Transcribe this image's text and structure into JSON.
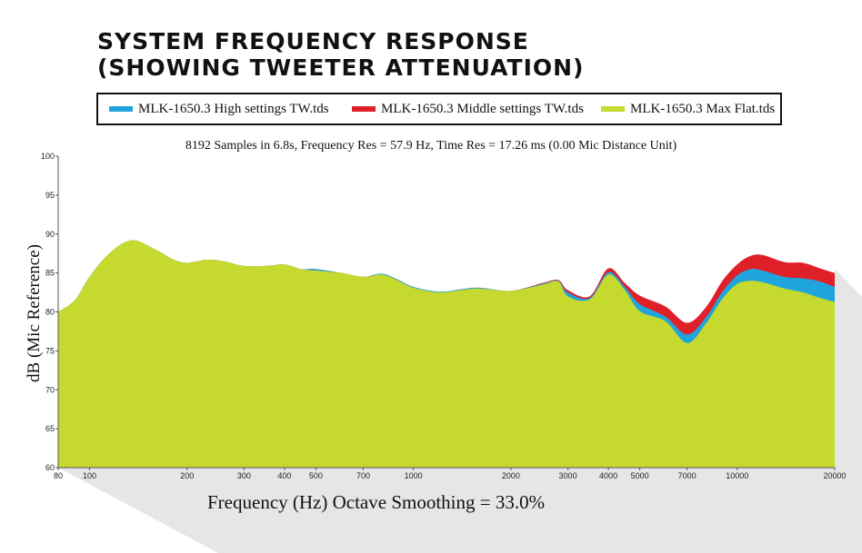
{
  "title_lines": [
    "SYSTEM FREQUENCY RESPONSE",
    "(SHOWING TWEETER ATTENUATION)"
  ],
  "subtitle": "8192 Samples in 6.8s, Frequency Res = 57.9 Hz, Time Res = 17.26 ms (0.00 Mic Distance Unit)",
  "colors": {
    "high": "#1fa4dc",
    "middle": "#e02029",
    "maxflat": "#c6d92e",
    "shadow": "#e2e2e2"
  },
  "chart_data": {
    "type": "area",
    "title": "SYSTEM FREQUENCY RESPONSE (SHOWING TWEETER ATTENUATION)",
    "xlabel": "Frequency (Hz) Octave Smoothing = 33.0%",
    "ylabel": "dB (Mic Reference)",
    "xscale": "log",
    "xlim": [
      80,
      20000
    ],
    "ylim": [
      60,
      100
    ],
    "grid": false,
    "legend": "top",
    "x_ticks": [
      80,
      100,
      200,
      300,
      400,
      500,
      700,
      1000,
      2000,
      3000,
      4000,
      5000,
      7000,
      10000,
      20000
    ],
    "y_ticks": [
      60,
      65,
      70,
      75,
      80,
      85,
      90,
      95,
      100
    ],
    "x": [
      80,
      90,
      100,
      115,
      135,
      160,
      180,
      200,
      230,
      260,
      300,
      350,
      400,
      450,
      500,
      600,
      700,
      800,
      900,
      1000,
      1200,
      1400,
      1600,
      2000,
      2500,
      2800,
      3000,
      3500,
      4000,
      4500,
      5000,
      6000,
      7000,
      8000,
      9000,
      10000,
      11000,
      12000,
      14000,
      16000,
      18000,
      20000
    ],
    "series": [
      {
        "name": "MLK-1650.3 Middle settings TW.tds",
        "color": "#e02029",
        "values": [
          80.0,
          81.5,
          84.5,
          87.5,
          89.2,
          88.0,
          86.8,
          86.3,
          86.7,
          86.5,
          85.9,
          85.9,
          86.1,
          85.5,
          85.5,
          85.0,
          84.5,
          84.9,
          84.1,
          83.2,
          82.5,
          82.9,
          83.1,
          82.7,
          83.7,
          84.1,
          82.8,
          82.0,
          85.6,
          83.7,
          82.1,
          80.7,
          78.6,
          80.6,
          84.0,
          86.1,
          87.2,
          87.3,
          86.4,
          86.3,
          85.6,
          85.0
        ]
      },
      {
        "name": "MLK-1650.3 High settings TW.tds",
        "color": "#1fa4dc",
        "values": [
          80.0,
          81.5,
          84.5,
          87.5,
          89.2,
          88.0,
          86.8,
          86.3,
          86.7,
          86.5,
          85.9,
          85.9,
          86.1,
          85.5,
          85.5,
          85.0,
          84.5,
          84.9,
          84.1,
          83.2,
          82.6,
          82.9,
          83.1,
          82.7,
          83.6,
          84.0,
          82.5,
          81.8,
          85.1,
          83.2,
          81.0,
          79.4,
          77.1,
          79.3,
          82.6,
          84.7,
          85.5,
          85.3,
          84.5,
          84.3,
          83.9,
          83.2
        ]
      },
      {
        "name": "MLK-1650.3 Max Flat.tds",
        "color": "#c6d92e",
        "values": [
          80.0,
          81.5,
          84.5,
          87.5,
          89.2,
          88.0,
          86.8,
          86.3,
          86.7,
          86.5,
          85.9,
          85.9,
          86.1,
          85.5,
          85.3,
          85.0,
          84.5,
          84.8,
          84.0,
          83.1,
          82.5,
          82.8,
          83.0,
          82.7,
          83.5,
          83.9,
          82.0,
          81.6,
          84.8,
          82.8,
          80.1,
          78.8,
          76.0,
          78.5,
          81.7,
          83.6,
          84.0,
          83.8,
          83.0,
          82.5,
          81.8,
          81.3
        ]
      }
    ]
  },
  "legend_order": [
    1,
    0,
    2
  ]
}
